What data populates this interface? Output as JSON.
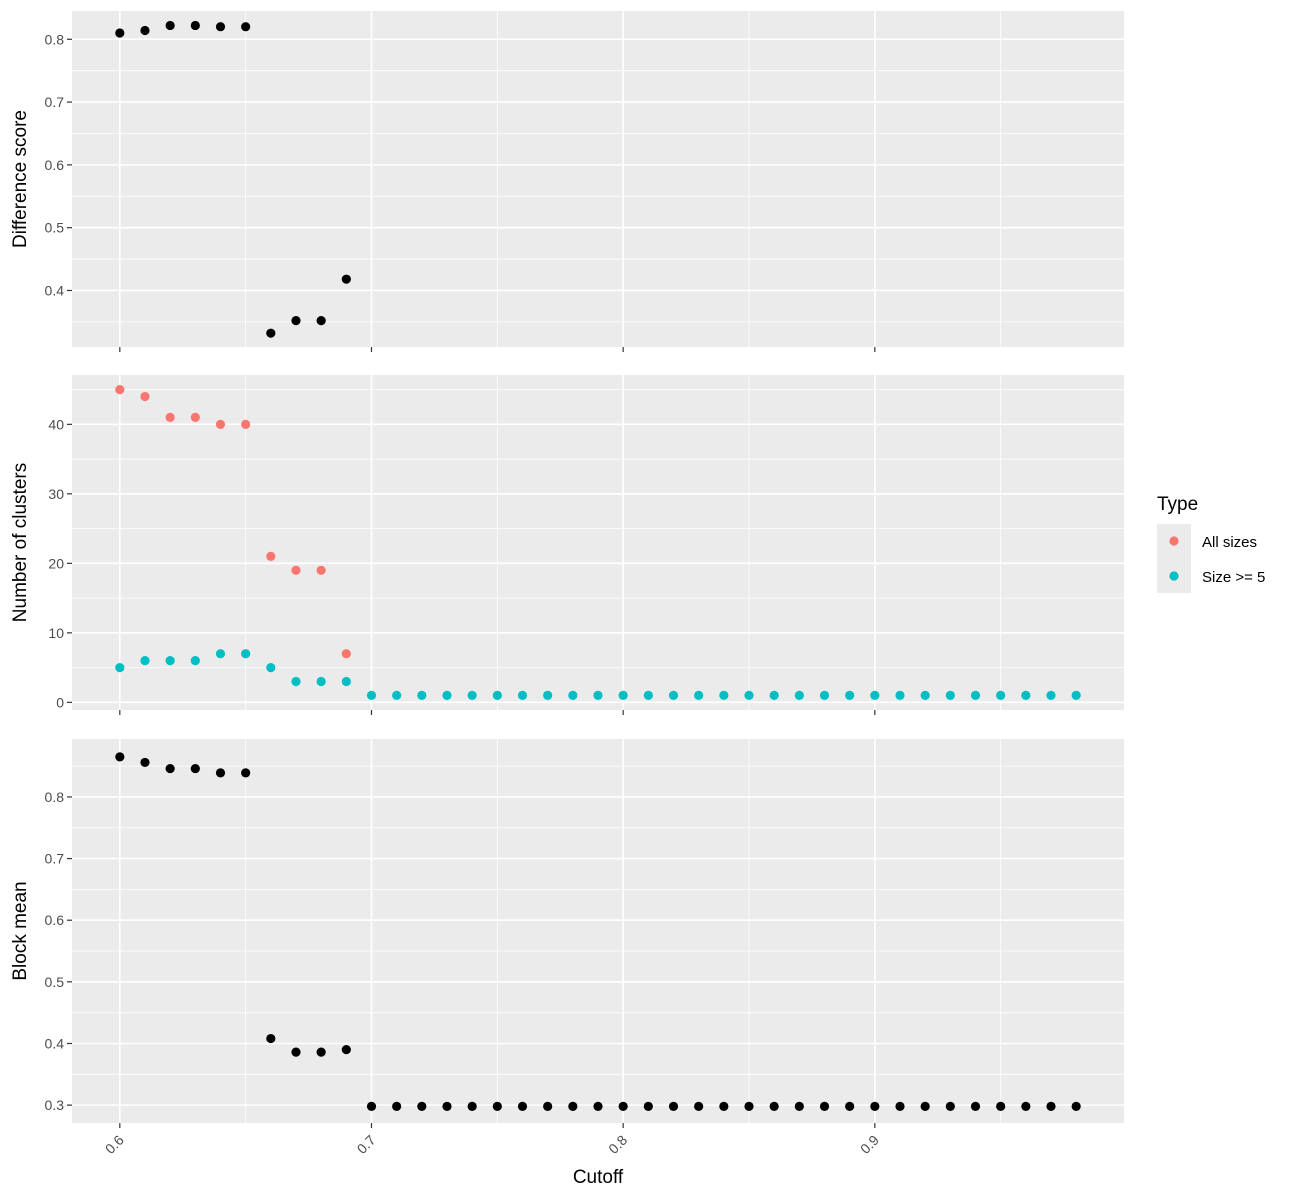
{
  "chart_data": {
    "type": "scatter",
    "xlabel": "Cutoff",
    "x_range": [
      0.581,
      0.999
    ],
    "x_ticks": [
      0.6,
      0.7,
      0.8,
      0.9
    ],
    "x_tick_labels": [
      "0.6",
      "0.7",
      "0.8",
      "0.9"
    ],
    "grid": true,
    "legend": {
      "title": "Type",
      "position": "right",
      "entries": [
        {
          "label": "All sizes",
          "color": "#F8766D"
        },
        {
          "label": "Size >= 5",
          "color": "#00BFC4"
        }
      ]
    },
    "panels": [
      {
        "id": "difference",
        "ylabel": "Difference score",
        "ylim": [
          0.31,
          0.845
        ],
        "y_ticks": [
          0.4,
          0.5,
          0.6,
          0.7,
          0.8
        ],
        "y_tick_labels": [
          "0.4",
          "0.5",
          "0.6",
          "0.7",
          "0.8"
        ],
        "series": [
          {
            "color": "#000000",
            "x": [
              0.6,
              0.61,
              0.62,
              0.63,
              0.64,
              0.65,
              0.66,
              0.67,
              0.68,
              0.69
            ],
            "y": [
              0.81,
              0.814,
              0.822,
              0.822,
              0.82,
              0.82,
              0.332,
              0.352,
              0.352,
              0.418
            ]
          }
        ]
      },
      {
        "id": "clusters",
        "ylabel": "Number of clusters",
        "ylim": [
          -1.1,
          47.1
        ],
        "y_ticks": [
          0,
          10,
          20,
          30,
          40
        ],
        "y_tick_labels": [
          "0",
          "10",
          "20",
          "30",
          "40"
        ],
        "series": [
          {
            "name": "All sizes",
            "color": "#F8766D",
            "x": [
              0.6,
              0.61,
              0.62,
              0.63,
              0.64,
              0.65,
              0.66,
              0.67,
              0.68,
              0.69
            ],
            "y": [
              45,
              44,
              41,
              41,
              40,
              40,
              21,
              19,
              19,
              7
            ]
          },
          {
            "name": "Size >= 5",
            "color": "#00BFC4",
            "x": [
              0.6,
              0.61,
              0.62,
              0.63,
              0.64,
              0.65,
              0.66,
              0.67,
              0.68,
              0.69,
              0.7,
              0.71,
              0.72,
              0.73,
              0.74,
              0.75,
              0.76,
              0.77,
              0.78,
              0.79,
              0.8,
              0.81,
              0.82,
              0.83,
              0.84,
              0.85,
              0.86,
              0.87,
              0.88,
              0.89,
              0.9,
              0.91,
              0.92,
              0.93,
              0.94,
              0.95,
              0.96,
              0.97,
              0.98
            ],
            "y": [
              5,
              6,
              6,
              6,
              7,
              7,
              5,
              3,
              3,
              3,
              1,
              1,
              1,
              1,
              1,
              1,
              1,
              1,
              1,
              1,
              1,
              1,
              1,
              1,
              1,
              1,
              1,
              1,
              1,
              1,
              1,
              1,
              1,
              1,
              1,
              1,
              1,
              1,
              1
            ]
          }
        ]
      },
      {
        "id": "blockmean",
        "ylabel": "Block mean",
        "ylim": [
          0.271,
          0.894
        ],
        "y_ticks": [
          0.3,
          0.4,
          0.5,
          0.6,
          0.7,
          0.8
        ],
        "y_tick_labels": [
          "0.3",
          "0.4",
          "0.5",
          "0.6",
          "0.7",
          "0.8"
        ],
        "series": [
          {
            "color": "#000000",
            "x": [
              0.6,
              0.61,
              0.62,
              0.63,
              0.64,
              0.65,
              0.66,
              0.67,
              0.68,
              0.69,
              0.7,
              0.71,
              0.72,
              0.73,
              0.74,
              0.75,
              0.76,
              0.77,
              0.78,
              0.79,
              0.8,
              0.81,
              0.82,
              0.83,
              0.84,
              0.85,
              0.86,
              0.87,
              0.88,
              0.89,
              0.9,
              0.91,
              0.92,
              0.93,
              0.94,
              0.95,
              0.96,
              0.97,
              0.98
            ],
            "y": [
              0.865,
              0.856,
              0.846,
              0.846,
              0.839,
              0.839,
              0.408,
              0.386,
              0.386,
              0.39,
              0.298,
              0.298,
              0.298,
              0.298,
              0.298,
              0.298,
              0.298,
              0.298,
              0.298,
              0.298,
              0.298,
              0.298,
              0.298,
              0.298,
              0.298,
              0.298,
              0.298,
              0.298,
              0.298,
              0.298,
              0.298,
              0.298,
              0.298,
              0.298,
              0.298,
              0.298,
              0.298,
              0.298,
              0.298
            ]
          }
        ]
      }
    ]
  }
}
